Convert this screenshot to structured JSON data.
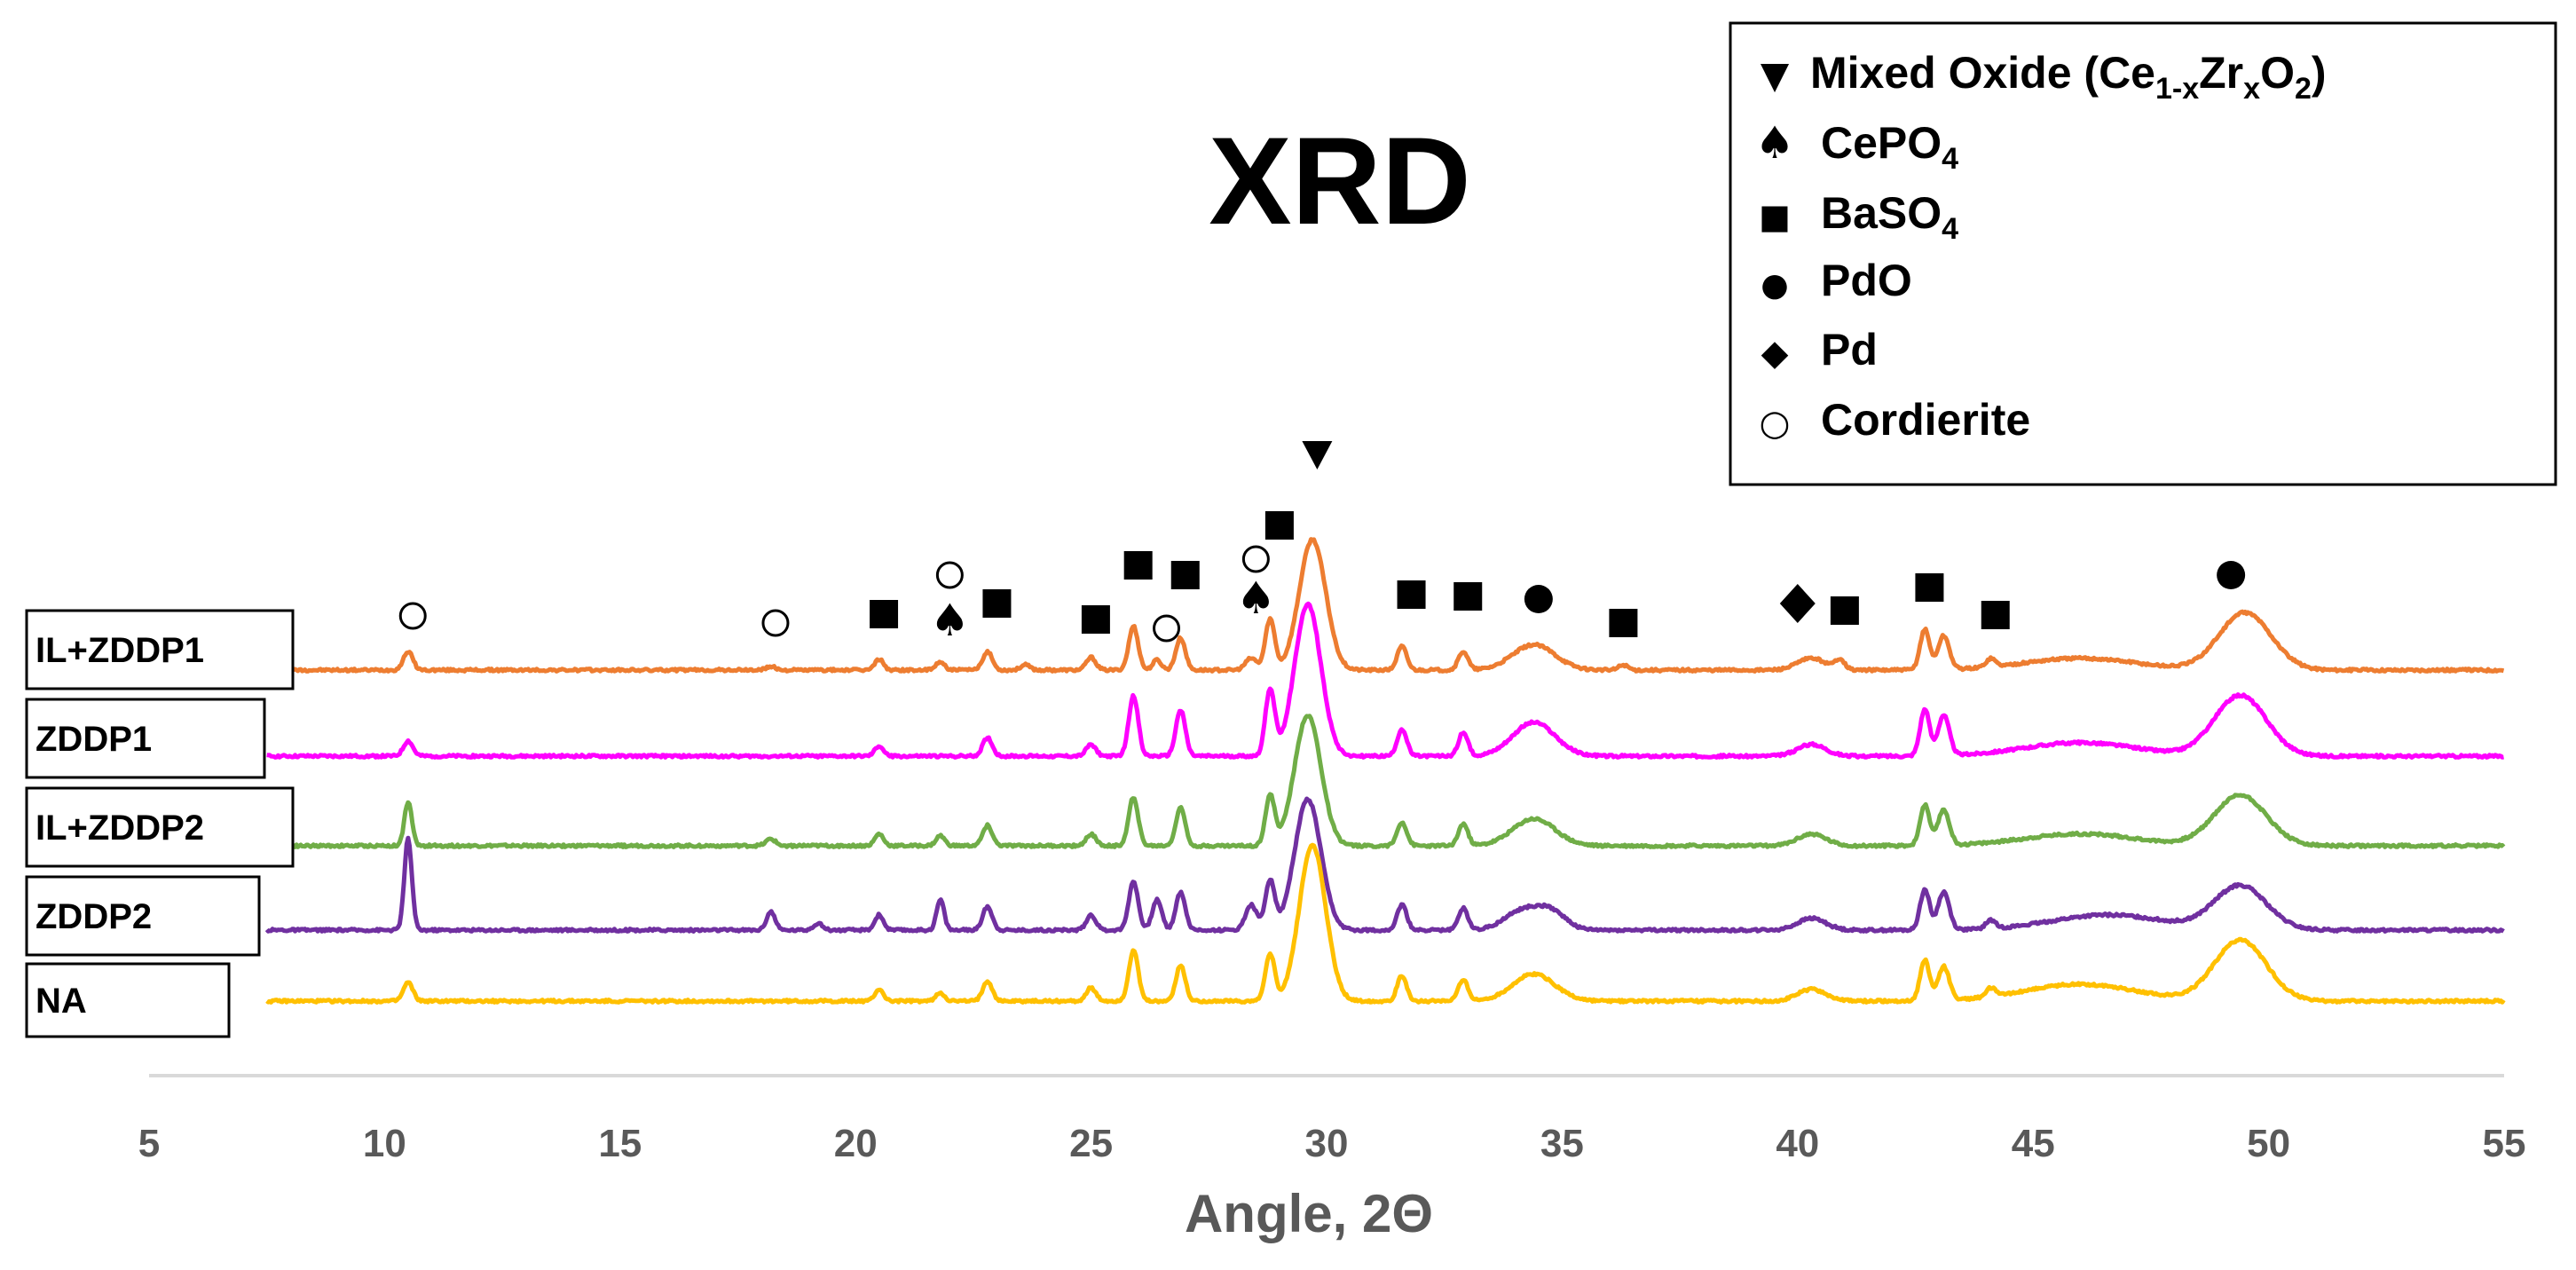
{
  "chart_data": {
    "type": "line",
    "title": "XRD",
    "xlabel": "Angle, 2Θ",
    "ylabel": "",
    "xlim": [
      5,
      55
    ],
    "xticks": [
      "5",
      "10",
      "15",
      "20",
      "25",
      "30",
      "35",
      "40",
      "45",
      "50",
      "55"
    ],
    "series": [
      {
        "name": "IL+ZDDP1",
        "color": "#ED7D31",
        "x_start": 7.5,
        "peaks": [
          [
            10.5,
            22,
            0.1
          ],
          [
            18.2,
            4,
            0.1
          ],
          [
            20.5,
            13,
            0.09
          ],
          [
            21.8,
            10,
            0.09
          ],
          [
            22.8,
            22,
            0.1
          ],
          [
            23.6,
            6,
            0.1
          ],
          [
            25.0,
            15,
            0.1
          ],
          [
            25.9,
            52,
            0.1
          ],
          [
            26.4,
            12,
            0.09
          ],
          [
            26.9,
            38,
            0.1
          ],
          [
            28.4,
            14,
            0.12
          ],
          [
            28.8,
            60,
            0.1
          ],
          [
            29.7,
            155,
            0.28
          ],
          [
            31.6,
            28,
            0.1
          ],
          [
            32.9,
            22,
            0.1
          ],
          [
            34.4,
            30,
            0.45
          ],
          [
            36.3,
            6,
            0.1
          ],
          [
            40.3,
            14,
            0.3
          ],
          [
            40.9,
            12,
            0.1
          ],
          [
            42.7,
            48,
            0.1
          ],
          [
            43.1,
            40,
            0.12
          ],
          [
            44.1,
            10,
            0.1
          ],
          [
            46.0,
            14,
            1.2
          ],
          [
            49.5,
            68,
            0.55
          ]
        ]
      },
      {
        "name": "ZDDP1",
        "color": "#FF00FF",
        "x_start": 7.5,
        "peaks": [
          [
            10.5,
            18,
            0.1
          ],
          [
            20.5,
            12,
            0.09
          ],
          [
            22.8,
            22,
            0.1
          ],
          [
            25.0,
            14,
            0.1
          ],
          [
            25.9,
            72,
            0.1
          ],
          [
            26.9,
            55,
            0.1
          ],
          [
            28.8,
            78,
            0.1
          ],
          [
            29.6,
            180,
            0.28
          ],
          [
            31.6,
            32,
            0.1
          ],
          [
            32.9,
            28,
            0.1
          ],
          [
            34.4,
            40,
            0.45
          ],
          [
            40.3,
            14,
            0.3
          ],
          [
            42.7,
            55,
            0.1
          ],
          [
            43.1,
            48,
            0.12
          ],
          [
            46.0,
            16,
            1.2
          ],
          [
            49.4,
            72,
            0.55
          ]
        ]
      },
      {
        "name": "IL+ZDDP2",
        "color": "#70AD47",
        "x_start": 7.5,
        "peaks": [
          [
            10.5,
            52,
            0.08
          ],
          [
            18.2,
            8,
            0.1
          ],
          [
            20.5,
            14,
            0.09
          ],
          [
            21.8,
            12,
            0.09
          ],
          [
            22.8,
            24,
            0.1
          ],
          [
            25.0,
            14,
            0.1
          ],
          [
            25.9,
            58,
            0.1
          ],
          [
            26.9,
            45,
            0.1
          ],
          [
            28.8,
            58,
            0.1
          ],
          [
            29.6,
            155,
            0.28
          ],
          [
            31.6,
            28,
            0.1
          ],
          [
            32.9,
            26,
            0.1
          ],
          [
            34.4,
            32,
            0.45
          ],
          [
            40.3,
            14,
            0.3
          ],
          [
            42.7,
            48,
            0.1
          ],
          [
            43.1,
            42,
            0.12
          ],
          [
            46.0,
            14,
            1.2
          ],
          [
            49.4,
            60,
            0.55
          ]
        ]
      },
      {
        "name": "ZDDP2",
        "color": "#7030A0",
        "x_start": 7.5,
        "peaks": [
          [
            10.5,
            108,
            0.08
          ],
          [
            18.2,
            22,
            0.09
          ],
          [
            19.2,
            8,
            0.1
          ],
          [
            20.5,
            18,
            0.09
          ],
          [
            21.8,
            36,
            0.08
          ],
          [
            22.8,
            28,
            0.1
          ],
          [
            25.0,
            18,
            0.1
          ],
          [
            25.9,
            58,
            0.1
          ],
          [
            26.4,
            36,
            0.1
          ],
          [
            26.9,
            45,
            0.1
          ],
          [
            28.4,
            30,
            0.12
          ],
          [
            28.8,
            58,
            0.1
          ],
          [
            29.6,
            155,
            0.28
          ],
          [
            31.6,
            30,
            0.1
          ],
          [
            32.9,
            26,
            0.1
          ],
          [
            34.2,
            24,
            0.4
          ],
          [
            34.8,
            18,
            0.3
          ],
          [
            40.3,
            14,
            0.3
          ],
          [
            42.7,
            48,
            0.1
          ],
          [
            43.1,
            45,
            0.12
          ],
          [
            44.1,
            10,
            0.1
          ],
          [
            46.6,
            18,
            1.2
          ],
          [
            49.4,
            52,
            0.55
          ]
        ]
      },
      {
        "name": "NA",
        "color": "#FFC000",
        "x_start": 7.5,
        "peaks": [
          [
            10.5,
            22,
            0.1
          ],
          [
            20.5,
            14,
            0.09
          ],
          [
            21.8,
            10,
            0.09
          ],
          [
            22.8,
            24,
            0.1
          ],
          [
            25.0,
            16,
            0.1
          ],
          [
            25.9,
            60,
            0.1
          ],
          [
            26.9,
            42,
            0.1
          ],
          [
            28.8,
            55,
            0.1
          ],
          [
            29.7,
            185,
            0.28
          ],
          [
            31.6,
            30,
            0.1
          ],
          [
            32.9,
            26,
            0.1
          ],
          [
            34.4,
            32,
            0.45
          ],
          [
            40.3,
            14,
            0.3
          ],
          [
            42.7,
            48,
            0.1
          ],
          [
            43.1,
            40,
            0.12
          ],
          [
            44.1,
            10,
            0.1
          ],
          [
            46.0,
            20,
            1.2
          ],
          [
            49.4,
            72,
            0.55
          ]
        ]
      }
    ],
    "legend": [
      {
        "symbol": "▼",
        "text": "Mixed Oxide (Ce",
        "sub1": "1-x",
        "mid": "Zr",
        "sub2": "x",
        "end": "O",
        "sub3": "2",
        "close": ")"
      },
      {
        "symbol": "♠",
        "text": "CePO",
        "sub1": "4"
      },
      {
        "symbol": "■",
        "text": "BaSO",
        "sub1": "4"
      },
      {
        "symbol": "●",
        "text": "PdO"
      },
      {
        "symbol": "◆",
        "text": "Pd"
      },
      {
        "symbol": "○",
        "text": "Cordierite"
      }
    ],
    "annotations": [
      {
        "symbol": "circle-open",
        "x": 10.6
      },
      {
        "symbol": "circle-open",
        "x": 18.3
      },
      {
        "symbol": "square",
        "x": 20.6
      },
      {
        "symbol": "spade",
        "x": 22.0
      },
      {
        "symbol": "circle-open",
        "x": 22.0
      },
      {
        "symbol": "square",
        "x": 23.0
      },
      {
        "symbol": "square",
        "x": 25.1
      },
      {
        "symbol": "square",
        "x": 26.0
      },
      {
        "symbol": "circle-open",
        "x": 26.6
      },
      {
        "symbol": "square",
        "x": 27.0
      },
      {
        "symbol": "spade",
        "x": 28.5
      },
      {
        "symbol": "circle-open",
        "x": 28.5
      },
      {
        "symbol": "square",
        "x": 29.0
      },
      {
        "symbol": "triangle-down",
        "x": 29.8
      },
      {
        "symbol": "square",
        "x": 31.8
      },
      {
        "symbol": "square",
        "x": 33.0
      },
      {
        "symbol": "circle-filled",
        "x": 34.5
      },
      {
        "symbol": "square",
        "x": 36.3
      },
      {
        "symbol": "diamond",
        "x": 40.0
      },
      {
        "symbol": "square",
        "x": 41.0
      },
      {
        "symbol": "square",
        "x": 42.8
      },
      {
        "symbol": "square",
        "x": 44.2
      },
      {
        "symbol": "circle-filled",
        "x": 49.2
      }
    ]
  }
}
